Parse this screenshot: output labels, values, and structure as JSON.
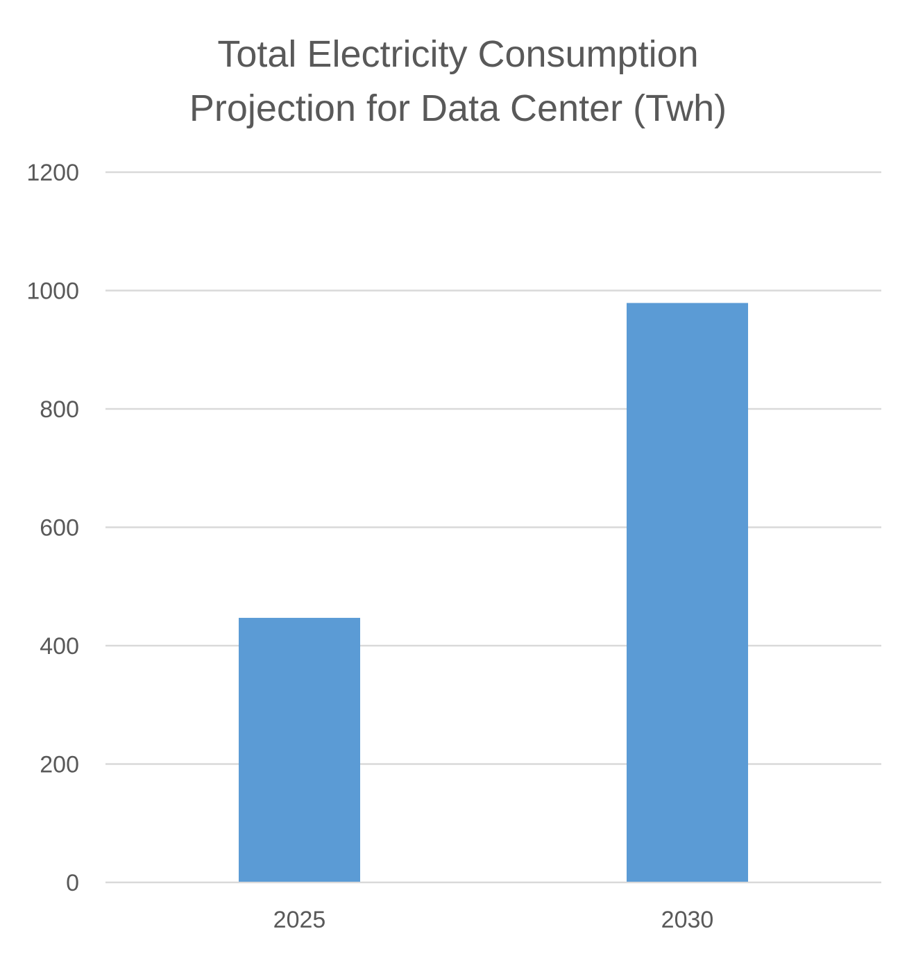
{
  "colors": {
    "bar": "#5b9bd5",
    "gridline": "#d9d9d9",
    "text": "#595959",
    "background": "#ffffff"
  },
  "chart_data": {
    "type": "bar",
    "title_lines": [
      "Total Electricity Consumption",
      "Projection for Data Center (Twh)"
    ],
    "categories": [
      "2025",
      "2030"
    ],
    "values": [
      447,
      979
    ],
    "ylim": [
      0,
      1200
    ],
    "y_ticks": [
      0,
      200,
      400,
      600,
      800,
      1000,
      1200
    ],
    "xlabel": "",
    "ylabel": "",
    "grid": true,
    "legend": "none"
  }
}
